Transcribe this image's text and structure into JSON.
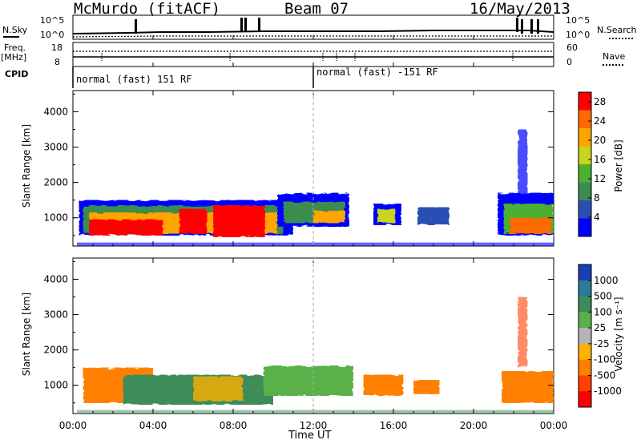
{
  "header": {
    "station": "McMurdo (fitACF)",
    "beam": "Beam 07",
    "date": "16/May/2013"
  },
  "small_panels": {
    "nsky_label": "N.Sky",
    "nsearch_label": "N.Search",
    "freq_label": "Freq.",
    "freq_unit": "[MHz]",
    "nave_label": "Nave",
    "cpid_label": "CPID",
    "left_ticks_top": [
      "10^5",
      "10^0"
    ],
    "right_ticks_top": [
      "10^5",
      "10^0"
    ],
    "left_ticks_freq": [
      "18",
      "8"
    ],
    "right_ticks_nave": [
      "60",
      "0"
    ],
    "cpid_first": "normal (fast) 151 RF",
    "cpid_second": "normal (fast) -151 RF"
  },
  "colors": {
    "power_scale": [
      "#0000ff",
      "#2a4fb4",
      "#3d8c4f",
      "#4cb030",
      "#c8d61e",
      "#ffa500",
      "#ff6a00",
      "#ff0000"
    ],
    "velocity_scale": [
      "#1a3fb4",
      "#2a7a9a",
      "#3d8c5a",
      "#5ab04a",
      "#b4b4b4",
      "#ffb000",
      "#ff8000",
      "#ff4000",
      "#ff0000"
    ]
  },
  "chart_data": [
    {
      "type": "heatmap",
      "quantity": "Power",
      "ylabel": "Slant Range [km]",
      "xlabel": "Time UT",
      "x_ticks": [
        "00:00",
        "04:00",
        "08:00",
        "12:00",
        "16:00",
        "20:00",
        "00:00"
      ],
      "y_ticks": [
        1000,
        2000,
        3000,
        4000
      ],
      "ylim": [
        200,
        4600
      ],
      "xlim_hours": [
        0,
        24
      ],
      "colorbar": {
        "label": "Power [dB]",
        "ticks": [
          4,
          8,
          12,
          16,
          20,
          24,
          28
        ],
        "range": [
          0,
          30
        ]
      }
    },
    {
      "type": "heatmap",
      "quantity": "Velocity",
      "ylabel": "Slant Range [km]",
      "xlabel": "Time UT",
      "x_ticks": [
        "00:00",
        "04:00",
        "08:00",
        "12:00",
        "16:00",
        "20:00",
        "00:00"
      ],
      "y_ticks": [
        1000,
        2000,
        3000,
        4000
      ],
      "ylim": [
        200,
        4600
      ],
      "xlim_hours": [
        0,
        24
      ],
      "colorbar": {
        "label": "Velocity [m s⁻¹]",
        "ticks": [
          1000,
          500,
          100,
          25,
          -25,
          -100,
          -500,
          -1000
        ]
      }
    }
  ]
}
